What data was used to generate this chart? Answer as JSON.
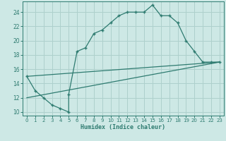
{
  "xlabel": "Humidex (Indice chaleur)",
  "bg_color": "#cde8e5",
  "grid_color": "#aed0cc",
  "line_color": "#2e7b70",
  "xlim": [
    -0.5,
    23.5
  ],
  "ylim": [
    9.5,
    25.5
  ],
  "yticks": [
    10,
    12,
    14,
    16,
    18,
    20,
    22,
    24
  ],
  "xticks": [
    0,
    1,
    2,
    3,
    4,
    5,
    6,
    7,
    8,
    9,
    10,
    11,
    12,
    13,
    14,
    15,
    16,
    17,
    18,
    19,
    20,
    21,
    22,
    23
  ],
  "line1_x": [
    0,
    1,
    2,
    3,
    4,
    5,
    5,
    6,
    7,
    8,
    9,
    10,
    11,
    12,
    13,
    14,
    15,
    16,
    17,
    18,
    19,
    20,
    21,
    22,
    23
  ],
  "line1_y": [
    15,
    13,
    12,
    11,
    10.5,
    10,
    12.5,
    18.5,
    19,
    21,
    21.5,
    22.5,
    23.5,
    24,
    24,
    24,
    25,
    23.5,
    23.5,
    22.5,
    20,
    18.5,
    17,
    17,
    17
  ],
  "line2_x": [
    0,
    23
  ],
  "line2_y": [
    15,
    17
  ],
  "line3_x": [
    0,
    23
  ],
  "line3_y": [
    12,
    17
  ]
}
